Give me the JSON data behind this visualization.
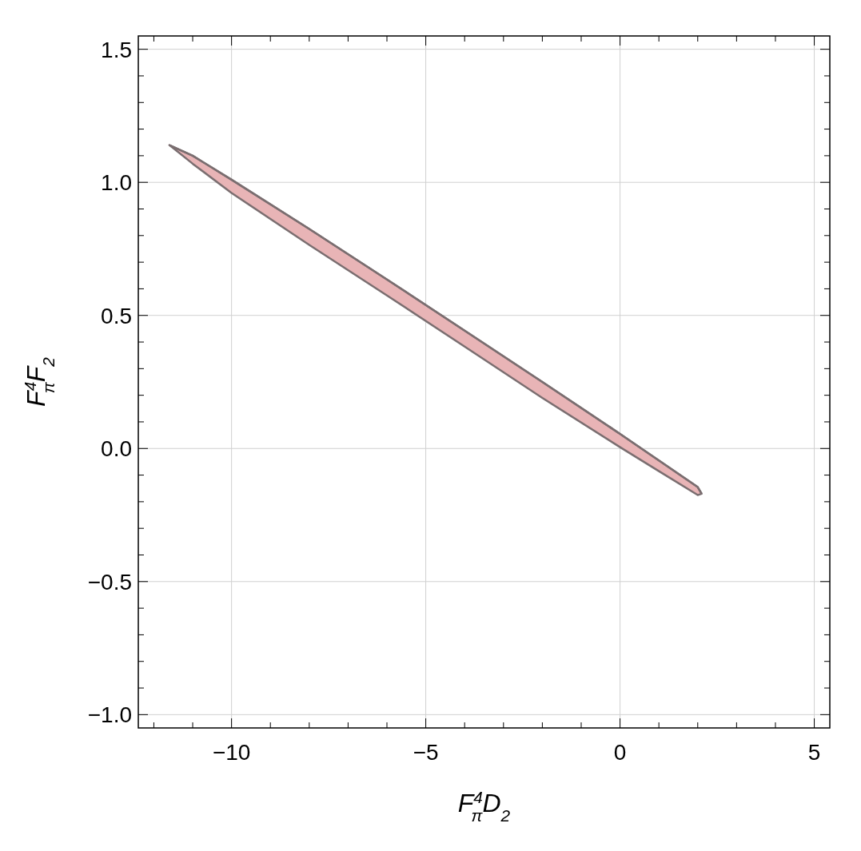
{
  "chart_data": {
    "type": "line",
    "xlabel": "F$^{4}$$_{π}$D$_{2}$",
    "ylabel": "F$^{4}$$_{π}$F$_{2}$",
    "xlim": [
      -12.4,
      5.4
    ],
    "ylim": [
      -1.05,
      1.55
    ],
    "xticks": [
      {
        "value": -12,
        "label": null
      },
      {
        "value": -11,
        "label": null
      },
      {
        "value": -10,
        "label": "−10"
      },
      {
        "value": -9,
        "label": null
      },
      {
        "value": -8,
        "label": null
      },
      {
        "value": -7,
        "label": null
      },
      {
        "value": -6,
        "label": null
      },
      {
        "value": -5,
        "label": "−5"
      },
      {
        "value": -4,
        "label": null
      },
      {
        "value": -3,
        "label": null
      },
      {
        "value": -2,
        "label": null
      },
      {
        "value": -1,
        "label": null
      },
      {
        "value": 0,
        "label": "0"
      },
      {
        "value": 1,
        "label": null
      },
      {
        "value": 2,
        "label": null
      },
      {
        "value": 3,
        "label": null
      },
      {
        "value": 4,
        "label": null
      },
      {
        "value": 5,
        "label": "5"
      }
    ],
    "yticks": [
      {
        "value": -1.0,
        "label": "−1.0"
      },
      {
        "value": -0.9,
        "label": null
      },
      {
        "value": -0.8,
        "label": null
      },
      {
        "value": -0.7,
        "label": null
      },
      {
        "value": -0.6,
        "label": null
      },
      {
        "value": -0.5,
        "label": "−0.5"
      },
      {
        "value": -0.4,
        "label": null
      },
      {
        "value": -0.3,
        "label": null
      },
      {
        "value": -0.2,
        "label": null
      },
      {
        "value": -0.1,
        "label": null
      },
      {
        "value": 0,
        "label": "0.0"
      },
      {
        "value": 0.1,
        "label": null
      },
      {
        "value": 0.2,
        "label": null
      },
      {
        "value": 0.3,
        "label": null
      },
      {
        "value": 0.4,
        "label": null
      },
      {
        "value": 0.5,
        "label": "0.5"
      },
      {
        "value": 0.6,
        "label": null
      },
      {
        "value": 0.7,
        "label": null
      },
      {
        "value": 0.8,
        "label": null
      },
      {
        "value": 0.9,
        "label": null
      },
      {
        "value": 1.0,
        "label": "1.0"
      },
      {
        "value": 1.1,
        "label": null
      },
      {
        "value": 1.2,
        "label": null
      },
      {
        "value": 1.3,
        "label": null
      },
      {
        "value": 1.4,
        "label": null
      },
      {
        "value": 1.5,
        "label": "1.5"
      }
    ],
    "grid": true,
    "series": [
      {
        "color": "#7a6e70",
        "x": [
          -11.6,
          -11,
          -10,
          -8,
          -6,
          -4,
          -2,
          0,
          1,
          2,
          2.1
        ],
        "values": [
          1.14,
          1.1,
          1.01,
          0.825,
          0.635,
          0.443,
          0.25,
          0.055,
          -0.045,
          -0.145,
          -0.17
        ],
        "upper": [
          1.14,
          1.1,
          1.01,
          0.825,
          0.635,
          0.443,
          0.25,
          0.055,
          -0.045,
          -0.145,
          -0.17
        ],
        "lower": [
          1.14,
          1.07,
          0.96,
          0.765,
          0.575,
          0.383,
          0.19,
          0.005,
          -0.085,
          -0.175,
          -0.17
        ]
      }
    ]
  }
}
